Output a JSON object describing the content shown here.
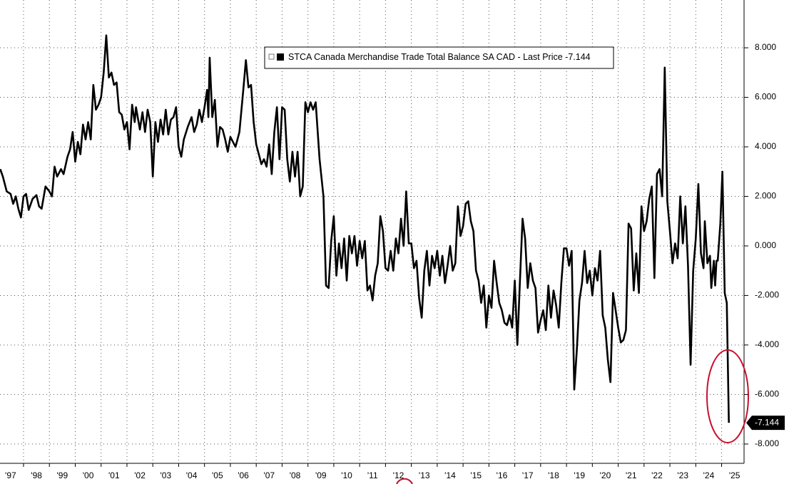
{
  "chart_data": {
    "type": "line",
    "x": [
      1997.1,
      1997.2,
      1997.35,
      1997.5,
      1997.6,
      1997.7,
      1997.8,
      1997.9,
      1998.0,
      1998.1,
      1998.2,
      1998.35,
      1998.5,
      1998.6,
      1998.7,
      1998.85,
      1999.0,
      1999.1,
      1999.2,
      1999.3,
      1999.45,
      1999.55,
      1999.7,
      1999.8,
      1999.9,
      2000.0,
      2000.1,
      2000.2,
      2000.3,
      2000.4,
      2000.5,
      2000.6,
      2000.7,
      2000.8,
      2000.9,
      2001.0,
      2001.1,
      2001.2,
      2001.3,
      2001.4,
      2001.5,
      2001.6,
      2001.7,
      2001.8,
      2001.9,
      2002.0,
      2002.1,
      2002.2,
      2002.3,
      2002.35,
      2002.5,
      2002.6,
      2002.7,
      2002.8,
      2002.9,
      2003.0,
      2003.1,
      2003.2,
      2003.3,
      2003.4,
      2003.5,
      2003.6,
      2003.7,
      2003.8,
      2003.9,
      2004.0,
      2004.1,
      2004.2,
      2004.35,
      2004.5,
      2004.6,
      2004.7,
      2004.8,
      2004.9,
      2005.0,
      2005.1,
      2005.15,
      2005.2,
      2005.3,
      2005.4,
      2005.5,
      2005.6,
      2005.7,
      2005.8,
      2005.9,
      2006.0,
      2006.1,
      2006.2,
      2006.35,
      2006.5,
      2006.6,
      2006.7,
      2006.8,
      2006.9,
      2007.0,
      2007.1,
      2007.2,
      2007.3,
      2007.4,
      2007.5,
      2007.6,
      2007.7,
      2007.8,
      2007.9,
      2008.0,
      2008.1,
      2008.2,
      2008.3,
      2008.4,
      2008.5,
      2008.6,
      2008.7,
      2008.8,
      2008.9,
      2009.0,
      2009.1,
      2009.2,
      2009.3,
      2009.45,
      2009.6,
      2009.7,
      2009.8,
      2009.9,
      2010.0,
      2010.1,
      2010.2,
      2010.3,
      2010.4,
      2010.5,
      2010.6,
      2010.7,
      2010.8,
      2010.9,
      2011.0,
      2011.1,
      2011.2,
      2011.3,
      2011.4,
      2011.5,
      2011.6,
      2011.7,
      2011.8,
      2011.9,
      2012.0,
      2012.1,
      2012.2,
      2012.3,
      2012.4,
      2012.5,
      2012.6,
      2012.7,
      2012.8,
      2012.9,
      2013.0,
      2013.1,
      2013.2,
      2013.3,
      2013.4,
      2013.5,
      2013.6,
      2013.7,
      2013.8,
      2013.9,
      2014.0,
      2014.1,
      2014.2,
      2014.3,
      2014.4,
      2014.5,
      2014.6,
      2014.7,
      2014.8,
      2014.9,
      2015.0,
      2015.1,
      2015.2,
      2015.3,
      2015.4,
      2015.5,
      2015.6,
      2015.7,
      2015.8,
      2015.9,
      2016.0,
      2016.1,
      2016.2,
      2016.3,
      2016.4,
      2016.5,
      2016.6,
      2016.7,
      2016.8,
      2016.9,
      2017.0,
      2017.1,
      2017.2,
      2017.3,
      2017.4,
      2017.5,
      2017.6,
      2017.7,
      2017.8,
      2017.9,
      2018.0,
      2018.1,
      2018.2,
      2018.3,
      2018.4,
      2018.5,
      2018.6,
      2018.7,
      2018.8,
      2018.9,
      2019.0,
      2019.1,
      2019.2,
      2019.3,
      2019.4,
      2019.5,
      2019.6,
      2019.7,
      2019.8,
      2019.9,
      2020.0,
      2020.1,
      2020.2,
      2020.3,
      2020.4,
      2020.5,
      2020.6,
      2020.7,
      2020.8,
      2020.9,
      2021.0,
      2021.1,
      2021.2,
      2021.3,
      2021.4,
      2021.5,
      2021.6,
      2021.7,
      2021.8,
      2021.9,
      2022.0,
      2022.1,
      2022.2,
      2022.3,
      2022.4,
      2022.5,
      2022.6,
      2022.7,
      2022.8,
      2022.9,
      2023.0,
      2023.1,
      2023.2,
      2023.3,
      2023.4,
      2023.5,
      2023.6,
      2023.7,
      2023.8,
      2023.9,
      2024.0,
      2024.1,
      2024.2,
      2024.3,
      2024.35,
      2024.45,
      2024.55,
      2024.6,
      2024.7,
      2024.75,
      2024.8,
      2024.85,
      2024.95,
      2025.03,
      2025.12,
      2025.2,
      2025.28
    ],
    "series": [
      {
        "name": "STCA Canada Merchandise Trade Total Balance SA CAD - Last Price",
        "color": "#000000",
        "values": [
          3.1,
          2.8,
          2.2,
          2.1,
          1.7,
          2.0,
          1.5,
          1.15,
          2.0,
          2.1,
          1.45,
          1.9,
          2.05,
          1.6,
          1.5,
          2.4,
          2.2,
          2.0,
          3.2,
          2.8,
          3.1,
          2.9,
          3.6,
          3.9,
          4.6,
          3.4,
          4.2,
          3.7,
          4.9,
          4.3,
          5.0,
          4.3,
          6.5,
          5.5,
          5.7,
          6.0,
          7.0,
          8.5,
          6.8,
          7.0,
          6.5,
          6.6,
          5.4,
          5.3,
          4.7,
          5.0,
          3.9,
          5.7,
          5.0,
          5.6,
          4.7,
          5.4,
          4.6,
          5.5,
          5.0,
          2.8,
          5.0,
          4.2,
          5.1,
          4.5,
          5.5,
          4.5,
          5.1,
          5.2,
          5.6,
          4.0,
          3.6,
          4.3,
          4.8,
          5.2,
          4.6,
          4.9,
          5.5,
          5.0,
          5.6,
          6.3,
          5.2,
          7.6,
          5.2,
          5.9,
          4.0,
          4.8,
          4.7,
          4.3,
          3.8,
          4.4,
          4.2,
          4.0,
          4.6,
          6.3,
          7.5,
          6.4,
          6.5,
          5.0,
          4.1,
          3.7,
          3.3,
          3.5,
          3.2,
          4.1,
          2.9,
          4.6,
          5.6,
          3.5,
          5.6,
          5.5,
          3.5,
          2.6,
          3.8,
          2.8,
          3.8,
          2.0,
          2.4,
          5.8,
          5.4,
          5.8,
          5.5,
          5.8,
          3.5,
          2.0,
          -1.6,
          -1.7,
          0.2,
          1.2,
          -1.2,
          0.1,
          -0.9,
          0.3,
          -1.4,
          0.4,
          -0.3,
          0.4,
          -0.8,
          0.2,
          -0.5,
          0.2,
          -1.8,
          -1.6,
          -2.2,
          -1.2,
          -0.7,
          1.2,
          0.6,
          -0.9,
          -1.0,
          -0.2,
          -1.0,
          0.3,
          -0.3,
          1.1,
          0.0,
          2.2,
          0.1,
          0.1,
          -0.9,
          -0.6,
          -2.1,
          -2.9,
          -1.0,
          -0.2,
          -1.6,
          -0.4,
          -0.9,
          -0.2,
          -1.2,
          -0.4,
          -1.5,
          -0.8,
          0.0,
          -1.0,
          -0.7,
          1.6,
          0.4,
          0.8,
          1.7,
          1.8,
          1.0,
          0.6,
          -1.0,
          -1.4,
          -2.3,
          -1.6,
          -3.3,
          -2.0,
          -2.5,
          -0.6,
          -1.5,
          -2.3,
          -2.6,
          -3.1,
          -3.2,
          -2.8,
          -3.3,
          -1.4,
          -4.0,
          -1.4,
          1.1,
          0.3,
          -1.7,
          -0.7,
          -1.4,
          -1.7,
          -3.5,
          -3.0,
          -2.6,
          -3.4,
          -1.6,
          -2.9,
          -1.8,
          -2.4,
          -3.3,
          -1.5,
          -0.1,
          -0.1,
          -0.8,
          -0.2,
          -5.8,
          -4.2,
          -2.2,
          -1.5,
          -0.2,
          -1.5,
          -1.0,
          -2.0,
          -0.9,
          -1.4,
          -0.2,
          -2.8,
          -3.3,
          -4.6,
          -5.5,
          -1.9,
          -2.6,
          -3.3,
          -3.9,
          -3.8,
          -3.4,
          0.9,
          0.7,
          -1.8,
          -0.3,
          -1.9,
          1.6,
          0.6,
          1.0,
          1.9,
          2.4,
          -1.3,
          2.9,
          3.1,
          2.0,
          7.2,
          1.8,
          0.6,
          -0.7,
          0.1,
          -0.5,
          2.0,
          0.1,
          1.6,
          -0.8,
          -4.8,
          -1.0,
          0.3,
          2.5,
          -0.3,
          -0.9,
          1.0,
          -0.7,
          -0.4,
          -1.7,
          -0.6,
          -1.6,
          -0.6,
          -0.6,
          0.9,
          3.0,
          -1.9,
          -2.3,
          -7.144
        ]
      }
    ],
    "xlim": [
      1997.09,
      2025.84
    ],
    "xticks": [
      {
        "value": 1997,
        "label": "'97"
      },
      {
        "value": 1998,
        "label": "'98"
      },
      {
        "value": 1999,
        "label": "'99"
      },
      {
        "value": 2000,
        "label": "'00"
      },
      {
        "value": 2001,
        "label": "'01"
      },
      {
        "value": 2002,
        "label": "'02"
      },
      {
        "value": 2003,
        "label": "'03"
      },
      {
        "value": 2004,
        "label": "'04"
      },
      {
        "value": 2005,
        "label": "'05"
      },
      {
        "value": 2006,
        "label": "'06"
      },
      {
        "value": 2007,
        "label": "'07"
      },
      {
        "value": 2008,
        "label": "'08"
      },
      {
        "value": 2009,
        "label": "'09"
      },
      {
        "value": 2010,
        "label": "'10"
      },
      {
        "value": 2011,
        "label": "'11"
      },
      {
        "value": 2012,
        "label": "'12"
      },
      {
        "value": 2013,
        "label": "'13"
      },
      {
        "value": 2014,
        "label": "'14"
      },
      {
        "value": 2015,
        "label": "'15"
      },
      {
        "value": 2016,
        "label": "'16"
      },
      {
        "value": 2017,
        "label": "'17"
      },
      {
        "value": 2018,
        "label": "'18"
      },
      {
        "value": 2019,
        "label": "'19"
      },
      {
        "value": 2020,
        "label": "'20"
      },
      {
        "value": 2021,
        "label": "'21"
      },
      {
        "value": 2022,
        "label": "'22"
      },
      {
        "value": 2023,
        "label": "'23"
      },
      {
        "value": 2024,
        "label": "'24"
      },
      {
        "value": 2025,
        "label": "'25"
      }
    ],
    "ylim": [
      -8.78,
      9.93
    ],
    "yticks": [
      {
        "value": 8,
        "label": "8.000"
      },
      {
        "value": 6,
        "label": "6.000"
      },
      {
        "value": 4,
        "label": "4.000"
      },
      {
        "value": 2,
        "label": "2.000"
      },
      {
        "value": 0,
        "label": "0.000"
      },
      {
        "value": -2,
        "label": "-2.000"
      },
      {
        "value": -4,
        "label": "-4.000"
      },
      {
        "value": -6,
        "label": "-6.000"
      },
      {
        "value": -8,
        "label": "-8.000"
      }
    ],
    "grid": true
  }
}
